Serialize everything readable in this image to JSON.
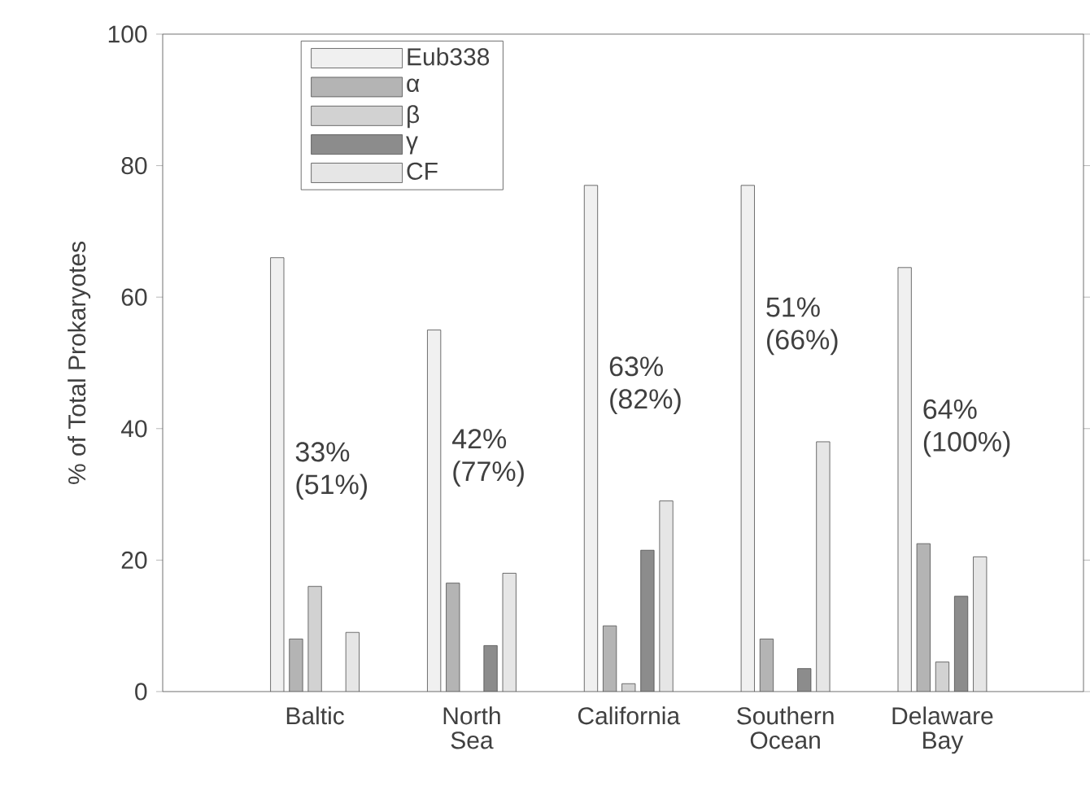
{
  "chart_data": {
    "type": "bar",
    "ylabel": "% of Total Prokaryotes",
    "categories": [
      "Baltic",
      "North Sea",
      "California",
      "Southern Ocean",
      "Delaware Bay"
    ],
    "series": [
      {
        "name": "Eub338",
        "color": "#f0f0f0",
        "values": [
          66,
          55,
          77,
          77,
          64.5
        ]
      },
      {
        "name": "α",
        "color": "#b4b4b4",
        "values": [
          8,
          16.5,
          10,
          8,
          22.5
        ]
      },
      {
        "name": "β",
        "color": "#d2d2d2",
        "values": [
          16,
          null,
          1.2,
          null,
          4.5
        ]
      },
      {
        "name": "γ",
        "color": "#8c8c8c",
        "values": [
          null,
          7,
          21.5,
          3.5,
          14.5
        ]
      },
      {
        "name": "CF",
        "color": "#e6e6e6",
        "values": [
          9,
          18,
          29,
          38,
          20.5
        ]
      }
    ],
    "ylim": [
      0,
      100
    ],
    "yticks": [
      0,
      20,
      40,
      60,
      80,
      100
    ],
    "legend": "top left",
    "annotations": [
      "33% (51%)",
      "42% (77%)",
      "63% (82%)",
      "51% (66%)",
      "64% (100%)"
    ]
  }
}
